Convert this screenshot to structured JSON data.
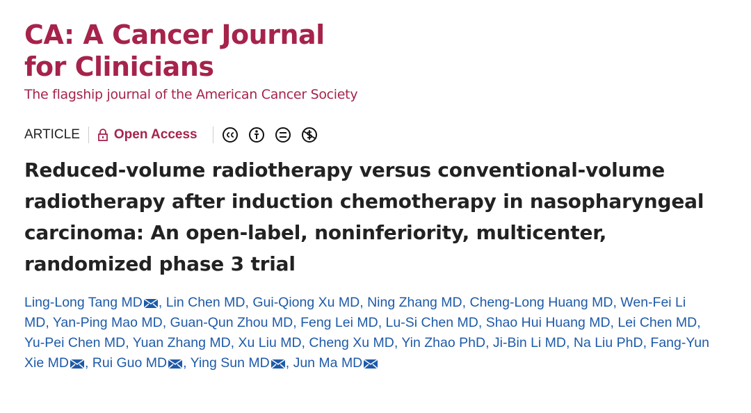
{
  "journal": {
    "title_line1": "CA: A Cancer Journal",
    "title_line2": "for Clinicians",
    "tagline": "The flagship journal of the American Cancer Society"
  },
  "article": {
    "type": "ARTICLE",
    "access": "Open Access",
    "title": "Reduced-volume radiotherapy versus conventional-volume radiotherapy after induction chemotherapy in nasopharyngeal carcinoma: An open-label, noninferiority, multicenter, randomized phase 3 trial"
  },
  "authors": {
    "separator": ",",
    "names": [
      "Ling-Long Tang MD",
      "Lin Chen MD",
      "Gui-Qiong Xu MD",
      "Ning Zhang MD",
      "Cheng-Long Huang MD",
      "Wen-Fei Li MD",
      "Yan-Ping Mao MD",
      "Guan-Qun Zhou MD",
      "Feng Lei MD",
      "Lu-Si Chen MD",
      "Shao Hui Huang MD",
      "Lei Chen MD",
      "Yu-Pei Chen MD",
      "Yuan Zhang MD",
      "Xu Liu MD",
      "Cheng Xu MD",
      "Yin Zhao PhD",
      "Ji-Bin Li MD",
      "Na Liu PhD",
      "Fang-Yun Xie MD",
      "Rui Guo MD",
      "Ying Sun MD",
      "Jun Ma MD"
    ],
    "corresponding": [
      0,
      19,
      20,
      21,
      22
    ]
  }
}
